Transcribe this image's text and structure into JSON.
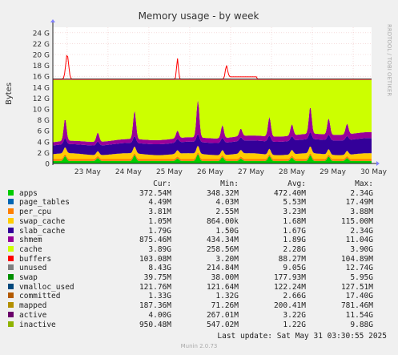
{
  "chart_data": {
    "type": "area",
    "title": "Memory usage - by week",
    "ylabel": "Bytes",
    "side_label": "RRDTOOL / TOBI OETIKER",
    "y_ticks": [
      "0",
      "2 G",
      "4 G",
      "6 G",
      "8 G",
      "10 G",
      "12 G",
      "14 G",
      "16 G",
      "18 G",
      "20 G",
      "22 G",
      "24 G"
    ],
    "ylim": [
      0,
      25
    ],
    "grid": true,
    "x_ticks": [
      "23 May",
      "24 May",
      "25 May",
      "26 May",
      "27 May",
      "28 May",
      "29 May",
      "30 May"
    ],
    "series_colors": {
      "apps": "#00cc00",
      "page_tables": "#0066b3",
      "per_cpu": "#ff8000",
      "swap_cache": "#ffcc00",
      "slab_cache": "#330099",
      "shmem": "#990099",
      "cache": "#ccff00",
      "buffers": "#ff0000",
      "committed": "#808080"
    }
  },
  "legend": {
    "headers": [
      "Cur:",
      "Min:",
      "Avg:",
      "Max:"
    ],
    "rows": [
      {
        "name": "apps",
        "color": "#00cc00",
        "cur": "372.54M",
        "min": "348.32M",
        "avg": "472.40M",
        "max": "2.34G"
      },
      {
        "name": "page_tables",
        "color": "#0066b3",
        "cur": "4.49M",
        "min": "4.03M",
        "avg": "5.53M",
        "max": "17.49M"
      },
      {
        "name": "per_cpu",
        "color": "#ff8000",
        "cur": "3.81M",
        "min": "2.55M",
        "avg": "3.23M",
        "max": "3.88M"
      },
      {
        "name": "swap_cache",
        "color": "#ffcc00",
        "cur": "1.05M",
        "min": "864.00k",
        "avg": "1.68M",
        "max": "115.00M"
      },
      {
        "name": "slab_cache",
        "color": "#330099",
        "cur": "1.79G",
        "min": "1.50G",
        "avg": "1.67G",
        "max": "2.34G"
      },
      {
        "name": "shmem",
        "color": "#990099",
        "cur": "875.46M",
        "min": "434.34M",
        "avg": "1.89G",
        "max": "11.04G"
      },
      {
        "name": "cache",
        "color": "#ccff00",
        "cur": "3.89G",
        "min": "258.56M",
        "avg": "2.28G",
        "max": "3.90G"
      },
      {
        "name": "buffers",
        "color": "#ff0000",
        "cur": "103.08M",
        "min": "3.20M",
        "avg": "88.27M",
        "max": "104.89M"
      },
      {
        "name": "unused",
        "color": "#808080",
        "cur": "8.43G",
        "min": "214.84M",
        "avg": "9.05G",
        "max": "12.74G"
      },
      {
        "name": "swap",
        "color": "#008f00",
        "cur": "39.75M",
        "min": "38.00M",
        "avg": "177.93M",
        "max": "5.95G"
      },
      {
        "name": "vmalloc_used",
        "color": "#00487d",
        "cur": "121.76M",
        "min": "121.64M",
        "avg": "122.24M",
        "max": "127.51M"
      },
      {
        "name": "committed",
        "color": "#b35a00",
        "cur": "1.33G",
        "min": "1.32G",
        "avg": "2.66G",
        "max": "17.40G"
      },
      {
        "name": "mapped",
        "color": "#b38f00",
        "cur": "187.36M",
        "min": "71.26M",
        "avg": "200.41M",
        "max": "781.46M"
      },
      {
        "name": "active",
        "color": "#6b006b",
        "cur": "4.00G",
        "min": "267.01M",
        "avg": "3.22G",
        "max": "11.54G"
      },
      {
        "name": "inactive",
        "color": "#8fb300",
        "cur": "950.48M",
        "min": "547.02M",
        "avg": "1.22G",
        "max": "9.88G"
      }
    ]
  },
  "footer": {
    "last_update": "Last update: Sat May 31 03:30:55 2025",
    "munin": "Munin 2.0.73"
  }
}
